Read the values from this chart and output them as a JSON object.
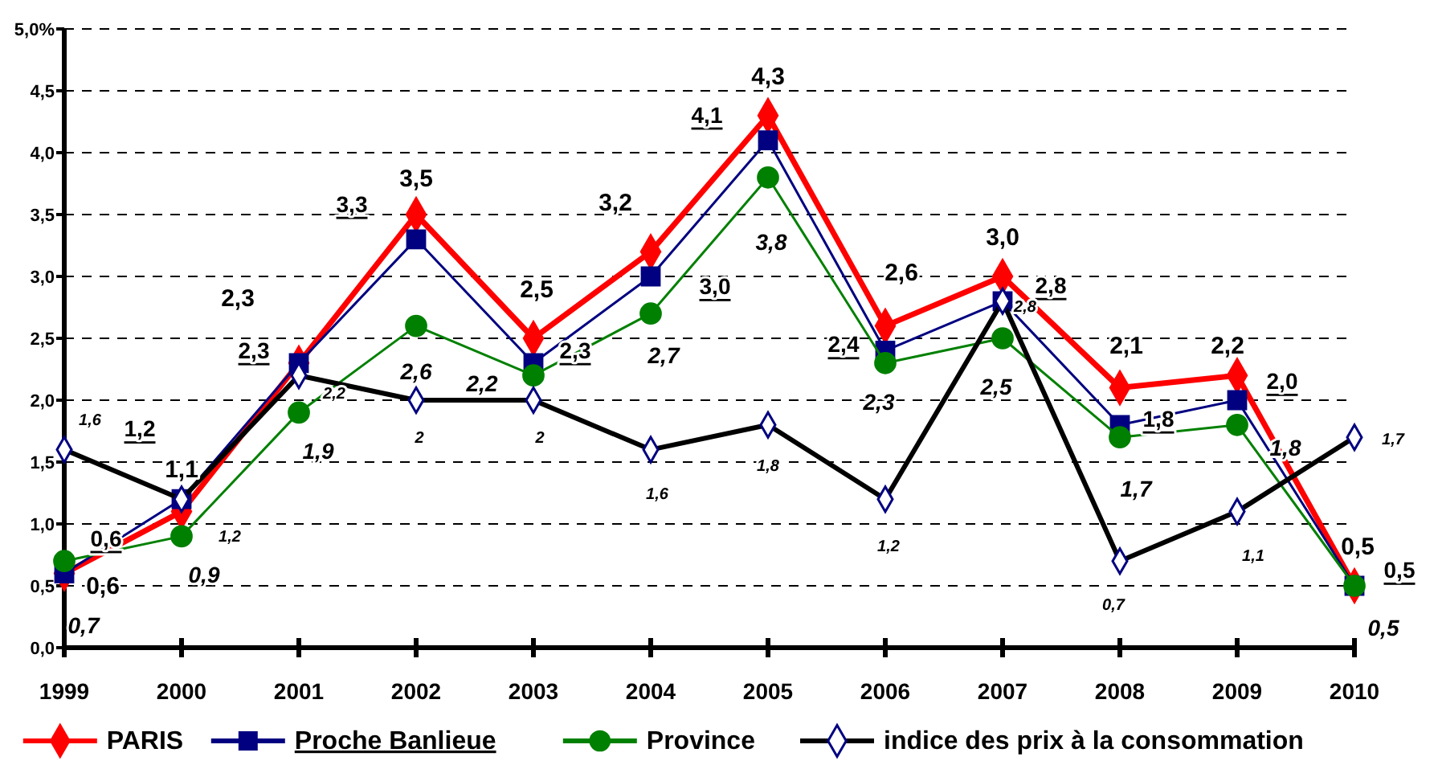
{
  "chart_data": {
    "type": "line",
    "categories": [
      "1999",
      "2000",
      "2001",
      "2002",
      "2003",
      "2004",
      "2005",
      "2006",
      "2007",
      "2008",
      "2009",
      "2010"
    ],
    "ylim": [
      0,
      5
    ],
    "yticks": [
      {
        "value": 0,
        "label": "0,0"
      },
      {
        "value": 0.5,
        "label": "0,5"
      },
      {
        "value": 1,
        "label": "1,0"
      },
      {
        "value": 1.5,
        "label": "1,5"
      },
      {
        "value": 2,
        "label": "2,0"
      },
      {
        "value": 2.5,
        "label": "2,5"
      },
      {
        "value": 3,
        "label": "3,0"
      },
      {
        "value": 3.5,
        "label": "3,5"
      },
      {
        "value": 4,
        "label": "4,0"
      },
      {
        "value": 4.5,
        "label": "4,5"
      },
      {
        "value": 5,
        "label": "5,0%"
      }
    ],
    "grid": "y",
    "legend": "bottom",
    "series": [
      {
        "name": "PARIS",
        "color": "#ff0000",
        "marker": "diamond",
        "values": [
          0.6,
          1.1,
          2.3,
          3.5,
          2.5,
          3.2,
          4.3,
          2.6,
          3.0,
          2.1,
          2.2,
          0.5
        ],
        "value_labels": [
          "0,6",
          "1,1",
          "2,3",
          "3,5",
          "2,5",
          "3,2",
          "4,3",
          "2,6",
          "3,0",
          "2,1",
          "2,2",
          "0,5"
        ]
      },
      {
        "name": "Proche Banlieue",
        "color": "#000080",
        "marker": "square",
        "values": [
          0.6,
          1.2,
          2.3,
          3.3,
          2.3,
          3.0,
          4.1,
          2.4,
          2.8,
          1.8,
          2.0,
          0.5
        ],
        "value_labels": [
          "0,6",
          "1,2",
          "2,3",
          "3,3",
          "2,3",
          "3,0",
          "4,1",
          "2,4",
          "2,8",
          "1,8",
          "2,0",
          "0,5"
        ]
      },
      {
        "name": "Province",
        "color": "#008000",
        "marker": "circle",
        "values": [
          0.7,
          0.9,
          1.9,
          2.6,
          2.2,
          2.7,
          3.8,
          2.3,
          2.5,
          1.7,
          1.8,
          0.5
        ],
        "value_labels": [
          "0,7",
          "0,9",
          "1,9",
          "2,6",
          "2,2",
          "2,7",
          "3,8",
          "2,3",
          "2,5",
          "1,7",
          "1,8",
          "0,5"
        ]
      },
      {
        "name": "indice des prix à la consommation",
        "color": "#000000",
        "marker": "diamond",
        "values": [
          1.6,
          1.2,
          2.2,
          2,
          2,
          1.6,
          1.8,
          1.2,
          2.8,
          0.7,
          1.1,
          1.7
        ],
        "value_labels": [
          "1,6",
          "1,2",
          "2,2",
          "2",
          "2",
          "1,6",
          "1,8",
          "1,2",
          "2,8",
          "0,7",
          "1,1",
          "1,7"
        ]
      }
    ]
  }
}
